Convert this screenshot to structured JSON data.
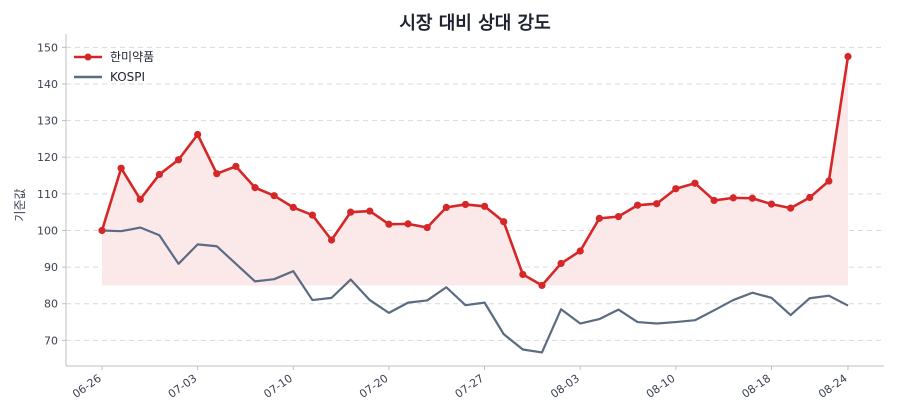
{
  "chart_data": {
    "type": "line",
    "title": "시장 대비 상대 강도",
    "ylabel": "기준값",
    "xlabel": "",
    "ylim": [
      63,
      152
    ],
    "yticks": [
      70,
      80,
      90,
      100,
      110,
      120,
      130,
      140,
      150
    ],
    "xtick_labels": [
      "06-26",
      "07-03",
      "07-10",
      "07-20",
      "07-27",
      "08-03",
      "08-10",
      "08-18",
      "08-24"
    ],
    "xtick_positions": [
      0,
      5,
      10,
      15,
      20,
      25,
      30,
      35,
      39
    ],
    "grid": "y-dashed",
    "legend_position": "top-left",
    "baseline_fill": 85,
    "series": [
      {
        "name": "한미약품",
        "color": "#d62728",
        "marker": "circle",
        "values": [
          100,
          117,
          108.5,
          115.3,
          119.3,
          126.2,
          115.5,
          117.5,
          111.7,
          109.5,
          106.3,
          104.2,
          97.4,
          105,
          105.3,
          101.7,
          101.8,
          100.8,
          106.3,
          107.1,
          106.6,
          102.4,
          88,
          85,
          91,
          94.4,
          103.3,
          103.8,
          106.9,
          107.3,
          111.4,
          112.9,
          108.2,
          108.9,
          108.8,
          107.2,
          106.1,
          109,
          113.5,
          147.5
        ]
      },
      {
        "name": "KOSPI",
        "color": "#5b6b82",
        "marker": "none",
        "values": [
          100,
          99.8,
          100.8,
          98.7,
          90.9,
          96.2,
          95.7,
          90.9,
          86.1,
          86.7,
          88.9,
          81,
          81.6,
          86.6,
          81,
          77.5,
          80.3,
          80.9,
          84.5,
          79.6,
          80.3,
          71.7,
          67.5,
          66.7,
          78.5,
          74.6,
          75.8,
          78.4,
          75,
          74.6,
          75,
          75.5,
          78.2,
          81,
          83,
          81.6,
          76.9,
          81.5,
          82.2,
          79.5
        ]
      }
    ],
    "colors": {
      "fill": "#fbe9e9",
      "grid": "#d9d9d9",
      "axis": "#bfbfbf"
    }
  }
}
